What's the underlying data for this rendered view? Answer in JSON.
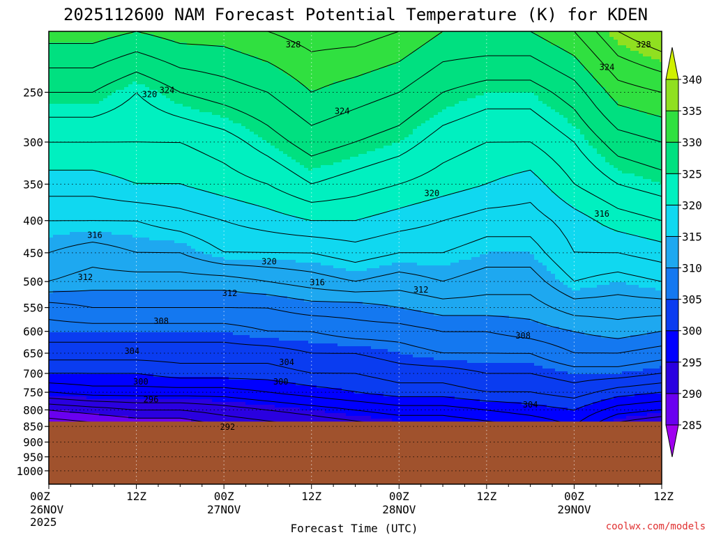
{
  "chart_data": {
    "type": "heatmap",
    "title": "2025112600 NAM Forecast Potential Temperature (K) for KDEN",
    "xlabel": "Forecast Time (UTC)",
    "ylabel": "",
    "credit": "coolwx.com/models",
    "x_ticks": [
      {
        "hour": 0,
        "label": "00Z",
        "sub": "26NOV",
        "sub2": "2025"
      },
      {
        "hour": 12,
        "label": "12Z",
        "sub": "",
        "sub2": ""
      },
      {
        "hour": 24,
        "label": "00Z",
        "sub": "27NOV",
        "sub2": ""
      },
      {
        "hour": 36,
        "label": "12Z",
        "sub": "",
        "sub2": ""
      },
      {
        "hour": 48,
        "label": "00Z",
        "sub": "28NOV",
        "sub2": ""
      },
      {
        "hour": 60,
        "label": "12Z",
        "sub": "",
        "sub2": ""
      },
      {
        "hour": 72,
        "label": "00Z",
        "sub": "29NOV",
        "sub2": ""
      },
      {
        "hour": 84,
        "label": "12Z",
        "sub": "",
        "sub2": ""
      }
    ],
    "xlim": [
      0,
      84
    ],
    "y_axis": "pressure (hPa), log scale, decreasing upward",
    "y_ticks": [
      250,
      300,
      350,
      400,
      450,
      500,
      550,
      600,
      650,
      700,
      750,
      800,
      850,
      900,
      950,
      1000
    ],
    "ylim": [
      1050,
      200
    ],
    "ground_pressure": 835,
    "colorbar": {
      "levels": [
        285,
        290,
        295,
        300,
        305,
        310,
        315,
        320,
        325,
        330,
        335,
        340
      ],
      "colors": [
        "#a000f0",
        "#6a00f0",
        "#2a00e0",
        "#0000ff",
        "#0a3cf0",
        "#1478f0",
        "#1ea8f0",
        "#10d8f0",
        "#00f0c0",
        "#00e080",
        "#30e040",
        "#90e020",
        "#d0f000"
      ]
    },
    "theta_profiles": {
      "pressure_levels": [
        1000,
        850,
        800,
        750,
        700,
        650,
        600,
        550,
        500,
        450,
        400,
        350,
        300,
        250,
        200
      ],
      "hours": [
        0,
        6,
        12,
        18,
        24,
        30,
        36,
        42,
        48,
        54,
        60,
        66,
        72,
        78,
        84
      ],
      "theta": [
        [
          283,
          286,
          290,
          296,
          300,
          303,
          305,
          307,
          312,
          314,
          316,
          319,
          322,
          326,
          331
        ],
        [
          283,
          287,
          291,
          297,
          300,
          303,
          305,
          308,
          311,
          313,
          316,
          319,
          322,
          326,
          331
        ],
        [
          283,
          288,
          292,
          297,
          300,
          303,
          305,
          308,
          311,
          314,
          316,
          320,
          322,
          324,
          330
        ],
        [
          283,
          288,
          292,
          297,
          301,
          303,
          305,
          308,
          311,
          314,
          317,
          320,
          322,
          326,
          331
        ],
        [
          284,
          290,
          293,
          297,
          301,
          303,
          305,
          308,
          311,
          316,
          318,
          321,
          323,
          327,
          331
        ],
        [
          284,
          291,
          294,
          298,
          301,
          303,
          306,
          308,
          312,
          316,
          319,
          322,
          325,
          328,
          332
        ],
        [
          284,
          292,
          295,
          299,
          302,
          304,
          306,
          309,
          313,
          316,
          320,
          324,
          327,
          330,
          333
        ],
        [
          284,
          293,
          296,
          300,
          302,
          304,
          307,
          309,
          314,
          317,
          320,
          323,
          326,
          329,
          333
        ],
        [
          284,
          294,
          297,
          301,
          303,
          305,
          307,
          310,
          313,
          316,
          319,
          322,
          325,
          328,
          332
        ],
        [
          284,
          294,
          297,
          301,
          303,
          306,
          308,
          311,
          314,
          316,
          318,
          321,
          323,
          326,
          330
        ],
        [
          284,
          295,
          298,
          302,
          304,
          306,
          308,
          311,
          313,
          315,
          317,
          320,
          322,
          325,
          330
        ],
        [
          285,
          296,
          299,
          302,
          304,
          306,
          309,
          311,
          313,
          315,
          317,
          319,
          322,
          325,
          330
        ],
        [
          286,
          298,
          300,
          303,
          305,
          308,
          310,
          313,
          316,
          318,
          319,
          322,
          324,
          327,
          332
        ],
        [
          288,
          293,
          297,
          301,
          305,
          308,
          311,
          313,
          315,
          318,
          321,
          324,
          327,
          331,
          336
        ],
        [
          288,
          291,
          296,
          300,
          304,
          307,
          310,
          313,
          316,
          319,
          322,
          325,
          328,
          332,
          338
        ]
      ]
    },
    "contour_labels": [
      {
        "text": "328",
        "hour": 33.5,
        "p": 210
      },
      {
        "text": "328",
        "hour": 81.5,
        "p": 210
      },
      {
        "text": "324",
        "hour": 76.5,
        "p": 228
      },
      {
        "text": "320",
        "hour": 13.8,
        "p": 252
      },
      {
        "text": "324",
        "hour": 16.2,
        "p": 248
      },
      {
        "text": "324",
        "hour": 40.2,
        "p": 268
      },
      {
        "text": "320",
        "hour": 52.5,
        "p": 362
      },
      {
        "text": "316",
        "hour": 6.3,
        "p": 422
      },
      {
        "text": "316",
        "hour": 75.8,
        "p": 390
      },
      {
        "text": "320",
        "hour": 30.2,
        "p": 465
      },
      {
        "text": "312",
        "hour": 5.0,
        "p": 492
      },
      {
        "text": "316",
        "hour": 36.8,
        "p": 502
      },
      {
        "text": "312",
        "hour": 24.8,
        "p": 522
      },
      {
        "text": "312",
        "hour": 51.0,
        "p": 515
      },
      {
        "text": "308",
        "hour": 15.4,
        "p": 578
      },
      {
        "text": "308",
        "hour": 65.0,
        "p": 610
      },
      {
        "text": "304",
        "hour": 11.4,
        "p": 645
      },
      {
        "text": "304",
        "hour": 32.6,
        "p": 672
      },
      {
        "text": "300",
        "hour": 12.6,
        "p": 722
      },
      {
        "text": "300",
        "hour": 31.8,
        "p": 722
      },
      {
        "text": "296",
        "hour": 14.0,
        "p": 770
      },
      {
        "text": "304",
        "hour": 66.0,
        "p": 785
      },
      {
        "text": "292",
        "hour": 24.5,
        "p": 852
      }
    ]
  }
}
